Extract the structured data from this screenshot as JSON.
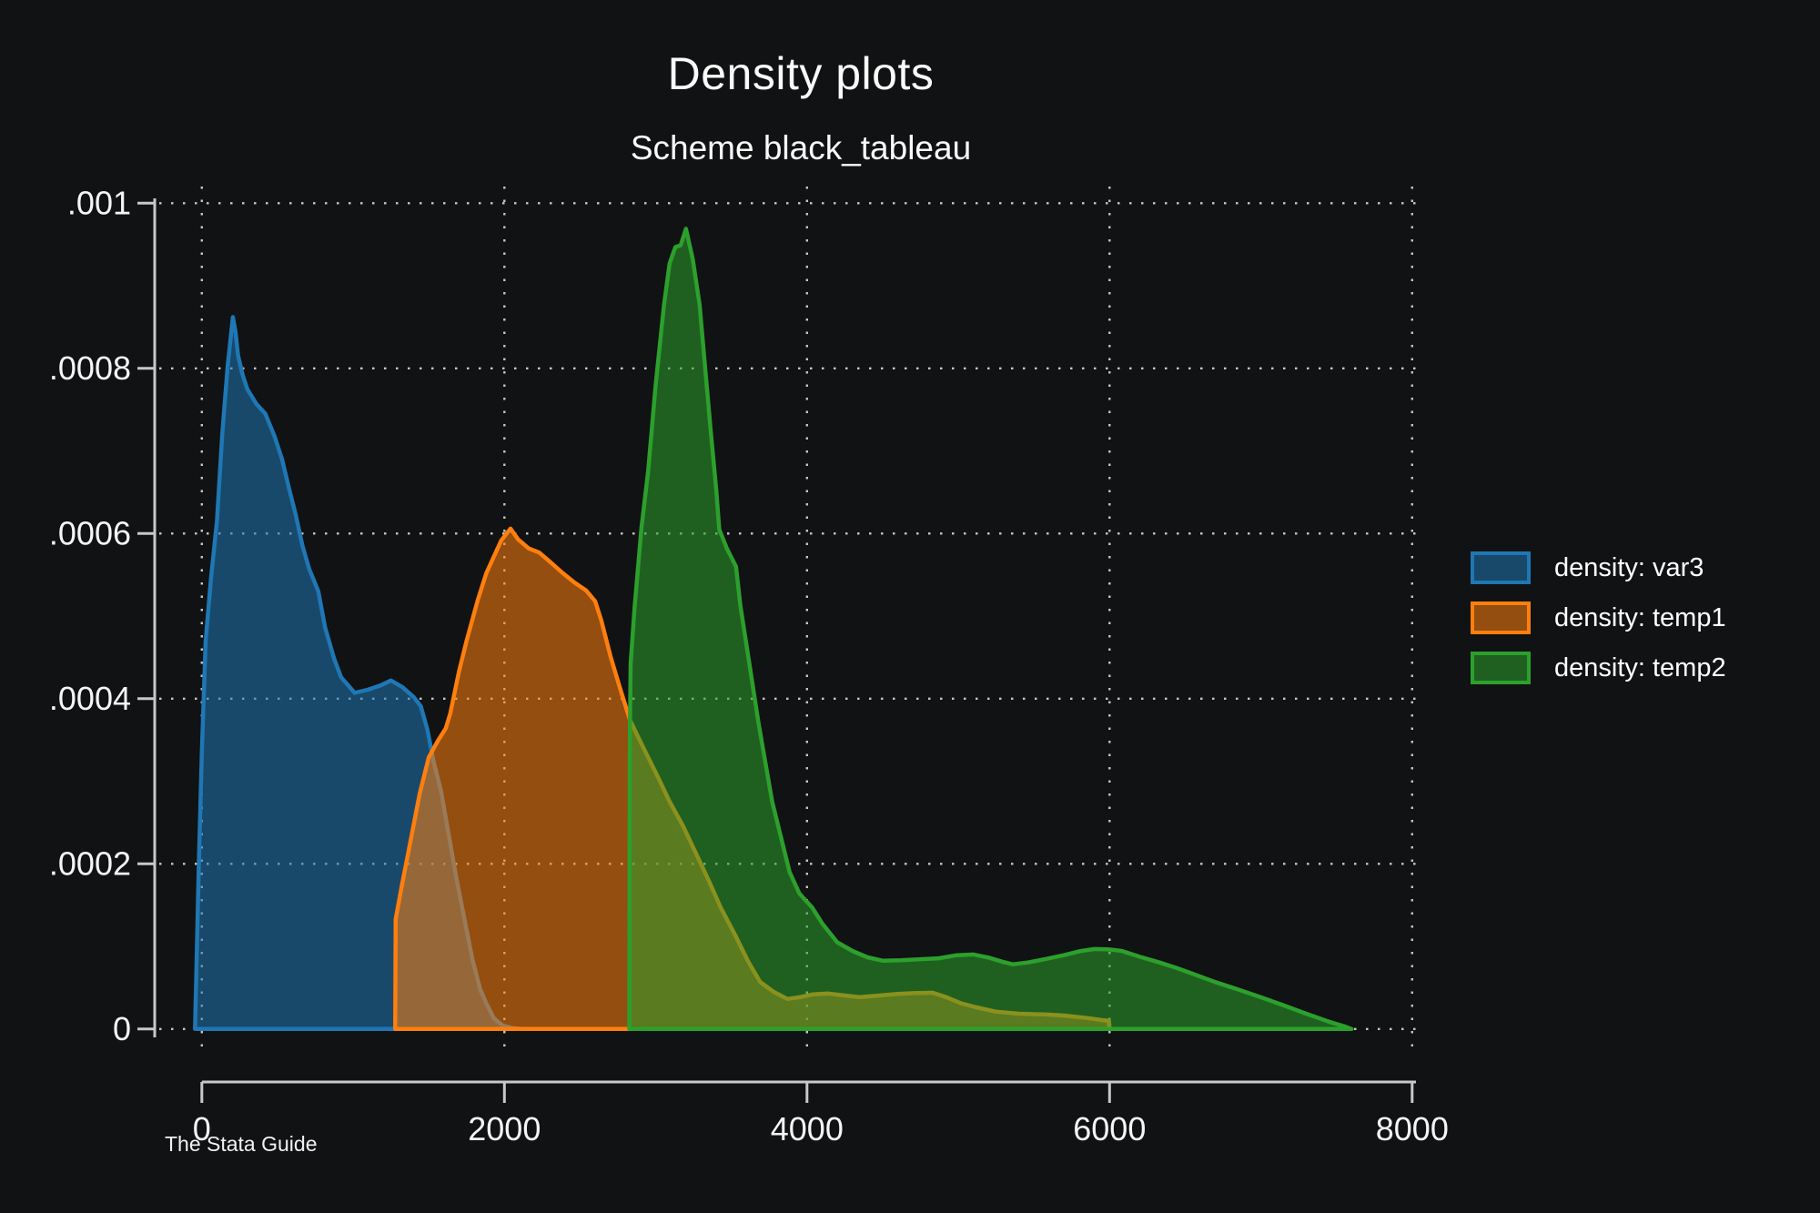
{
  "chart_data": {
    "type": "area",
    "title": "Density plots",
    "subtitle": "Scheme black_tableau",
    "caption": "The Stata Guide",
    "xlabel": "",
    "ylabel": "",
    "xlim": [
      0,
      8000
    ],
    "ylim": [
      0,
      0.001
    ],
    "grid": "dotted",
    "legend_position": "right",
    "colors": {
      "background": "#111213",
      "axis": "#c8c8c8",
      "grid": "#d0d0d0",
      "text": "#f5f5f5",
      "fill_opacity": 0.55
    },
    "x_ticks": [
      {
        "value": 0,
        "label": "0"
      },
      {
        "value": 2000,
        "label": "2000"
      },
      {
        "value": 4000,
        "label": "4000"
      },
      {
        "value": 6000,
        "label": "6000"
      },
      {
        "value": 8000,
        "label": "8000"
      }
    ],
    "y_ticks": [
      {
        "value": 0,
        "label": "0"
      },
      {
        "value": 0.0002,
        "label": ".0002"
      },
      {
        "value": 0.0004,
        "label": ".0004"
      },
      {
        "value": 0.0006,
        "label": ".0006"
      },
      {
        "value": 0.0008,
        "label": ".0008"
      },
      {
        "value": 0.001,
        "label": ".001"
      }
    ],
    "series": [
      {
        "name": "density: var3",
        "color": "#1f77b4",
        "points": [
          [
            -45,
            0
          ],
          [
            -35,
            8e-05
          ],
          [
            -20,
            0.0002
          ],
          [
            0,
            0.000335
          ],
          [
            25,
            0.00047
          ],
          [
            60,
            0.000545
          ],
          [
            100,
            0.000615
          ],
          [
            135,
            0.00072
          ],
          [
            170,
            0.000802
          ],
          [
            205,
            0.000862
          ],
          [
            222,
            0.000845
          ],
          [
            240,
            0.000815
          ],
          [
            268,
            0.000793
          ],
          [
            300,
            0.000775
          ],
          [
            360,
            0.000757
          ],
          [
            420,
            0.000745
          ],
          [
            480,
            0.000718
          ],
          [
            530,
            0.00069
          ],
          [
            580,
            0.000652
          ],
          [
            620,
            0.000623
          ],
          [
            665,
            0.000585
          ],
          [
            710,
            0.000557
          ],
          [
            770,
            0.00053
          ],
          [
            815,
            0.000486
          ],
          [
            875,
            0.000448
          ],
          [
            920,
            0.000426
          ],
          [
            1010,
            0.000407
          ],
          [
            1100,
            0.000411
          ],
          [
            1180,
            0.000416
          ],
          [
            1250,
            0.000422
          ],
          [
            1326,
            0.000414
          ],
          [
            1400,
            0.000402
          ],
          [
            1447,
            0.000391
          ],
          [
            1492,
            0.000362
          ],
          [
            1530,
            0.000325
          ],
          [
            1580,
            0.000289
          ],
          [
            1630,
            0.000237
          ],
          [
            1680,
            0.000185
          ],
          [
            1740,
            0.000129
          ],
          [
            1790,
            8.3e-05
          ],
          [
            1840,
            4.8e-05
          ],
          [
            1880,
            3.1e-05
          ],
          [
            1930,
            1.3e-05
          ],
          [
            1990,
            4e-06
          ],
          [
            2060,
            1e-06
          ],
          [
            2120,
            0
          ]
        ]
      },
      {
        "name": "density: temp1",
        "color": "#ff7f0e",
        "points": [
          [
            1278,
            0
          ],
          [
            1281,
            0.000133
          ],
          [
            1320,
            0.000172
          ],
          [
            1380,
            0.000228
          ],
          [
            1440,
            0.000285
          ],
          [
            1500,
            0.000329
          ],
          [
            1560,
            0.000349
          ],
          [
            1612,
            0.000364
          ],
          [
            1642,
            0.000382
          ],
          [
            1700,
            0.000433
          ],
          [
            1750,
            0.00047
          ],
          [
            1823,
            0.000519
          ],
          [
            1880,
            0.000552
          ],
          [
            1930,
            0.000572
          ],
          [
            1980,
            0.000592
          ],
          [
            2040,
            0.000606
          ],
          [
            2090,
            0.000593
          ],
          [
            2160,
            0.000582
          ],
          [
            2230,
            0.000577
          ],
          [
            2300,
            0.000566
          ],
          [
            2380,
            0.000553
          ],
          [
            2460,
            0.000541
          ],
          [
            2540,
            0.000531
          ],
          [
            2600,
            0.000518
          ],
          [
            2640,
            0.000495
          ],
          [
            2700,
            0.000452
          ],
          [
            2760,
            0.000415
          ],
          [
            2830,
            0.000374
          ],
          [
            2920,
            0.00034
          ],
          [
            3010,
            0.000307
          ],
          [
            3090,
            0.000276
          ],
          [
            3180,
            0.000246
          ],
          [
            3260,
            0.000215
          ],
          [
            3350,
            0.00018
          ],
          [
            3430,
            0.000147
          ],
          [
            3530,
            0.000112
          ],
          [
            3610,
            8.2e-05
          ],
          [
            3690,
            5.7e-05
          ],
          [
            3780,
            4.5e-05
          ],
          [
            3870,
            3.64e-05
          ],
          [
            3950,
            3.85e-05
          ],
          [
            4040,
            4.2e-05
          ],
          [
            4140,
            4.3e-05
          ],
          [
            4250,
            4.05e-05
          ],
          [
            4350,
            3.86e-05
          ],
          [
            4480,
            4.05e-05
          ],
          [
            4600,
            4.25e-05
          ],
          [
            4720,
            4.35e-05
          ],
          [
            4830,
            4.4e-05
          ],
          [
            4920,
            3.86e-05
          ],
          [
            5020,
            3.1e-05
          ],
          [
            5120,
            2.62e-05
          ],
          [
            5250,
            2.09e-05
          ],
          [
            5400,
            1.85e-05
          ],
          [
            5570,
            1.76e-05
          ],
          [
            5700,
            1.63e-05
          ],
          [
            5850,
            1.33e-05
          ],
          [
            5950,
            1.08e-05
          ],
          [
            5996,
            1e-05
          ],
          [
            6000,
            0
          ]
        ]
      },
      {
        "name": "density: temp2",
        "color": "#2ca02c",
        "points": [
          [
            2826,
            0
          ],
          [
            2829,
            0.00035
          ],
          [
            2834,
            0.000442
          ],
          [
            2860,
            0.00051
          ],
          [
            2906,
            0.000607
          ],
          [
            2950,
            0.000675
          ],
          [
            3000,
            0.00078
          ],
          [
            3055,
            0.000877
          ],
          [
            3092,
            0.000927
          ],
          [
            3130,
            0.000947
          ],
          [
            3165,
            0.000949
          ],
          [
            3200,
            0.000969
          ],
          [
            3245,
            0.000932
          ],
          [
            3290,
            0.000877
          ],
          [
            3326,
            0.000803
          ],
          [
            3362,
            0.000728
          ],
          [
            3400,
            0.000654
          ],
          [
            3420,
            0.000605
          ],
          [
            3470,
            0.000582
          ],
          [
            3531,
            0.00056
          ],
          [
            3560,
            0.000512
          ],
          [
            3600,
            0.000465
          ],
          [
            3680,
            0.00037
          ],
          [
            3770,
            0.000275
          ],
          [
            3885,
            0.00019
          ],
          [
            3950,
            0.000164
          ],
          [
            4035,
            0.000147
          ],
          [
            4100,
            0.000128
          ],
          [
            4200,
            0.000105
          ],
          [
            4300,
            9.45e-05
          ],
          [
            4400,
            8.68e-05
          ],
          [
            4500,
            8.27e-05
          ],
          [
            4620,
            8.33e-05
          ],
          [
            4750,
            8.45e-05
          ],
          [
            4870,
            8.56e-05
          ],
          [
            4990,
            8.94e-05
          ],
          [
            5100,
            9.02e-05
          ],
          [
            5200,
            8.65e-05
          ],
          [
            5290,
            8.15e-05
          ],
          [
            5360,
            7.84e-05
          ],
          [
            5460,
            8.05e-05
          ],
          [
            5580,
            8.48e-05
          ],
          [
            5700,
            8.95e-05
          ],
          [
            5810,
            9.44e-05
          ],
          [
            5900,
            9.69e-05
          ],
          [
            5990,
            9.65e-05
          ],
          [
            6080,
            9.45e-05
          ],
          [
            6200,
            8.75e-05
          ],
          [
            6330,
            8.05e-05
          ],
          [
            6450,
            7.35e-05
          ],
          [
            6560,
            6.62e-05
          ],
          [
            6700,
            5.68e-05
          ],
          [
            6850,
            4.78e-05
          ],
          [
            7000,
            3.85e-05
          ],
          [
            7150,
            2.88e-05
          ],
          [
            7300,
            1.85e-05
          ],
          [
            7450,
            8.8e-06
          ],
          [
            7560,
            2.8e-06
          ],
          [
            7600,
            0
          ]
        ]
      }
    ]
  }
}
